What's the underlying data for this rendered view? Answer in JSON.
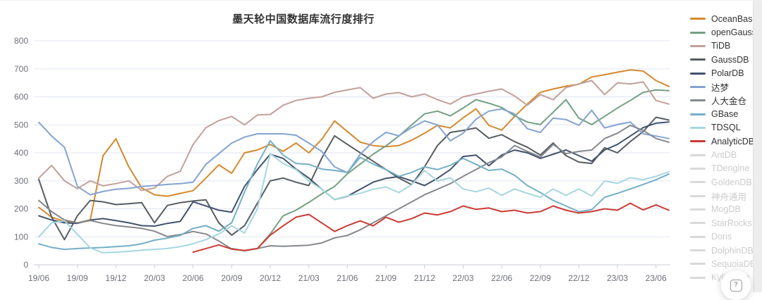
{
  "chart_data": {
    "type": "line",
    "title": "墨天轮中国数据库流行度排行",
    "grid": true,
    "legend_position": "right",
    "x": [
      "19/06",
      "19/07",
      "19/08",
      "19/09",
      "19/10",
      "19/11",
      "19/12",
      "20/01",
      "20/02",
      "20/03",
      "20/04",
      "20/05",
      "20/06",
      "20/07",
      "20/08",
      "20/09",
      "20/10",
      "20/11",
      "20/12",
      "21/01",
      "21/02",
      "21/03",
      "21/04",
      "21/05",
      "21/06",
      "21/07",
      "21/08",
      "21/09",
      "21/10",
      "21/11",
      "21/12",
      "22/01",
      "22/02",
      "22/03",
      "22/04",
      "22/05",
      "22/06",
      "22/07",
      "22/08",
      "22/09",
      "22/10",
      "22/11",
      "22/12",
      "23/01",
      "23/02",
      "23/03",
      "23/04",
      "23/05",
      "23/06",
      "23/07"
    ],
    "x_tick_labels": [
      "19/06",
      "19/09",
      "19/12",
      "20/03",
      "20/06",
      "20/09",
      "20/12",
      "21/03",
      "21/06",
      "21/09",
      "21/12",
      "22/03",
      "22/06",
      "22/09",
      "22/12",
      "23/03",
      "23/06"
    ],
    "x_tick_every": 3,
    "y_axis": {
      "min": 0,
      "max": 800,
      "interval": 100,
      "tick_labels": [
        "0",
        "100",
        "200",
        "300",
        "400",
        "500",
        "600",
        "700",
        "800"
      ]
    },
    "grid_color": "#E0E6F1",
    "axis_line_color": "#c9ced4",
    "series": [
      {
        "name": "OceanBase",
        "color": "#d5892e",
        "values": [
          205,
          170,
          155,
          150,
          160,
          390,
          450,
          350,
          275,
          250,
          245,
          255,
          265,
          310,
          357,
          327,
          400,
          410,
          430,
          405,
          435,
          400,
          448,
          514,
          476,
          438,
          426,
          422,
          426,
          445,
          470,
          498,
          489,
          525,
          557,
          498,
          481,
          530,
          574,
          616,
          628,
          638,
          645,
          671,
          679,
          688,
          696,
          692,
          658,
          637
        ]
      },
      {
        "name": "openGauss",
        "color": "#74a083",
        "values": [
          null,
          null,
          null,
          null,
          null,
          null,
          null,
          null,
          null,
          null,
          null,
          null,
          null,
          null,
          null,
          58,
          50,
          58,
          110,
          175,
          195,
          223,
          253,
          280,
          325,
          360,
          395,
          425,
          460,
          500,
          539,
          549,
          532,
          560,
          590,
          577,
          562,
          532,
          510,
          501,
          545,
          590,
          524,
          501,
          530,
          560,
          587,
          616,
          625,
          622
        ]
      },
      {
        "name": "TiDB",
        "color": "#c2a09a",
        "values": [
          310,
          355,
          300,
          272,
          300,
          282,
          290,
          300,
          266,
          274,
          316,
          334,
          430,
          490,
          515,
          530,
          500,
          535,
          537,
          570,
          587,
          595,
          600,
          616,
          625,
          633,
          595,
          610,
          615,
          600,
          610,
          590,
          574,
          600,
          610,
          620,
          628,
          603,
          570,
          608,
          590,
          633,
          646,
          658,
          608,
          650,
          646,
          653,
          587,
          574
        ]
      },
      {
        "name": "GaussDB",
        "color": "#575c61",
        "values": [
          305,
          170,
          90,
          175,
          230,
          225,
          215,
          218,
          222,
          150,
          212,
          222,
          228,
          232,
          150,
          106,
          140,
          220,
          300,
          310,
          295,
          283,
          380,
          461,
          430,
          400,
          370,
          340,
          310,
          286,
          350,
          426,
          473,
          480,
          489,
          452,
          465,
          440,
          420,
          392,
          435,
          390,
          367,
          362,
          418,
          400,
          440,
          476,
          527,
          517
        ]
      },
      {
        "name": "PolarDB",
        "color": "#42526e",
        "values": [
          175,
          160,
          150,
          148,
          160,
          165,
          158,
          150,
          140,
          138,
          148,
          155,
          225,
          210,
          195,
          188,
          280,
          340,
          395,
          380,
          342,
          310,
          270,
          233,
          245,
          270,
          295,
          309,
          315,
          300,
          283,
          309,
          340,
          387,
          392,
          354,
          392,
          410,
          400,
          380,
          395,
          410,
          390,
          370,
          410,
          430,
          460,
          490,
          506,
          510
        ]
      },
      {
        "name": "达梦",
        "color": "#84a3d3",
        "values": [
          509,
          460,
          420,
          280,
          250,
          262,
          270,
          273,
          280,
          283,
          287,
          290,
          295,
          359,
          397,
          435,
          456,
          468,
          468,
          468,
          463,
          435,
          405,
          350,
          329,
          395,
          440,
          473,
          461,
          490,
          514,
          500,
          443,
          470,
          520,
          549,
          557,
          539,
          486,
          473,
          524,
          519,
          498,
          552,
          489,
          501,
          510,
          468,
          460,
          451
        ]
      },
      {
        "name": "人大金仓",
        "color": "#85888c",
        "values": [
          230,
          190,
          160,
          150,
          158,
          148,
          140,
          135,
          130,
          120,
          101,
          108,
          119,
          110,
          85,
          56,
          51,
          58,
          68,
          66,
          68,
          70,
          78,
          96,
          105,
          125,
          150,
          175,
          200,
          225,
          250,
          270,
          290,
          316,
          340,
          365,
          385,
          426,
          405,
          385,
          430,
          397,
          405,
          410,
          451,
          470,
          498,
          480,
          451,
          438
        ]
      },
      {
        "name": "GBase",
        "color": "#74afc6",
        "values": [
          75,
          62,
          55,
          58,
          60,
          62,
          65,
          68,
          75,
          88,
          95,
          105,
          130,
          140,
          120,
          150,
          260,
          360,
          443,
          392,
          362,
          359,
          342,
          337,
          330,
          384,
          360,
          340,
          316,
          330,
          350,
          340,
          355,
          380,
          359,
          337,
          342,
          320,
          283,
          258,
          230,
          210,
          190,
          197,
          241,
          255,
          271,
          287,
          304,
          324
        ]
      },
      {
        "name": "TDSQL",
        "color": "#a6d6e0",
        "values": [
          100,
          150,
          157,
          109,
          60,
          43,
          45,
          48,
          52,
          55,
          58,
          65,
          75,
          90,
          110,
          139,
          114,
          200,
          397,
          362,
          340,
          300,
          270,
          233,
          246,
          255,
          270,
          278,
          258,
          286,
          337,
          299,
          311,
          271,
          261,
          274,
          248,
          271,
          255,
          241,
          271,
          248,
          271,
          246,
          299,
          291,
          311,
          304,
          316,
          332
        ]
      },
      {
        "name": "AnalyticDB",
        "color": "#cc3b33",
        "values": [
          null,
          null,
          null,
          null,
          null,
          null,
          null,
          null,
          null,
          null,
          null,
          null,
          45,
          58,
          71,
          56,
          51,
          58,
          106,
          139,
          170,
          180,
          150,
          119,
          140,
          157,
          139,
          170,
          152,
          165,
          185,
          178,
          190,
          210,
          198,
          203,
          190,
          195,
          185,
          190,
          210,
          195,
          185,
          190,
          200,
          195,
          220,
          196,
          214,
          195
        ]
      }
    ],
    "inactive_series": [
      "AntDB",
      "TDengine",
      "GoldenDB",
      "神舟通用",
      "MogDB",
      "StarRocks",
      "Doris",
      "DolphinDB",
      "SequoiaDB",
      "Kyligence"
    ]
  },
  "legend": {
    "active_text_color": "#333333",
    "inactive_text_color": "#cccccc",
    "inactive_swatch_color": "#d9d9d9"
  },
  "help_button": {
    "icon": "?"
  }
}
